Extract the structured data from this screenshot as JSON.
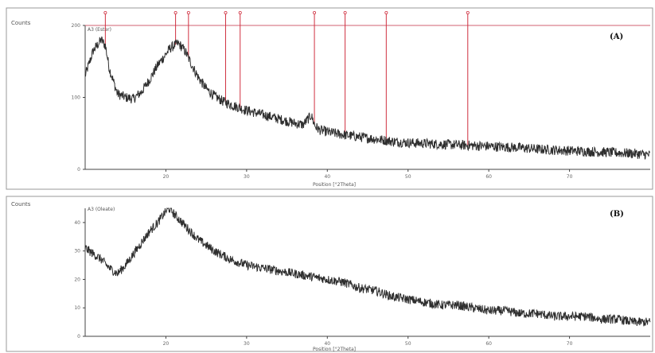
{
  "chart_data": [
    {
      "type": "line",
      "panel_label": "(A)",
      "ylabel": "Counts",
      "xlabel": "Position [°2Theta]",
      "sample_label": "A3 (Ester)",
      "xlim": [
        10,
        80
      ],
      "ylim": [
        0,
        200
      ],
      "xticks": [
        20,
        30,
        40,
        50,
        60,
        70
      ],
      "yticks": [
        0,
        100,
        200
      ],
      "ytick_labels": [
        "0",
        "100",
        "200"
      ],
      "xtick_labels": [
        "20",
        "30",
        "40",
        "50",
        "60",
        "70"
      ],
      "series": [
        {
          "x": [
            10,
            11,
            12,
            12.5,
            13,
            14,
            15,
            16,
            17,
            18,
            19,
            20,
            20.5,
            21,
            21.5,
            22,
            22.5,
            23,
            24,
            25,
            26,
            27,
            28,
            29,
            30,
            32,
            34,
            36,
            37,
            38,
            38.5,
            39,
            40,
            42,
            44,
            46,
            48,
            50,
            52,
            54,
            56,
            58,
            60,
            62,
            64,
            66,
            68,
            70,
            72,
            74,
            76,
            78,
            80
          ],
          "y": [
            130,
            165,
            180,
            172,
            140,
            105,
            100,
            98,
            108,
            125,
            145,
            160,
            168,
            172,
            175,
            170,
            162,
            150,
            128,
            112,
            102,
            95,
            90,
            86,
            82,
            76,
            70,
            64,
            62,
            75,
            60,
            55,
            52,
            48,
            45,
            42,
            39,
            37,
            36,
            35,
            34,
            33,
            32,
            31,
            30,
            28,
            27,
            26,
            25,
            24,
            23,
            22,
            20
          ]
        }
      ],
      "reference_peaks": [
        12.5,
        21.2,
        22.8,
        27.4,
        29.2,
        38.4,
        42.2,
        47.3,
        57.4
      ]
    },
    {
      "type": "line",
      "panel_label": "(B)",
      "ylabel": "Counts",
      "xlabel": "Position [°2Theta]",
      "sample_label": "A3 (Oleate)",
      "xlim": [
        10,
        80
      ],
      "ylim": [
        0,
        45
      ],
      "xticks": [
        20,
        30,
        40,
        50,
        60,
        70
      ],
      "yticks": [
        0,
        10,
        20,
        30,
        40
      ],
      "ytick_labels": [
        "0",
        "10",
        "20",
        "30",
        "40"
      ],
      "xtick_labels": [
        "20",
        "30",
        "40",
        "50",
        "60",
        "70"
      ],
      "series": [
        {
          "x": [
            10,
            11,
            12,
            13,
            14,
            15,
            16,
            17,
            18,
            19,
            20,
            20.5,
            21,
            22,
            23,
            24,
            25,
            26,
            28,
            30,
            32,
            34,
            36,
            38,
            40,
            42,
            44,
            46,
            48,
            50,
            52,
            54,
            56,
            58,
            60,
            62,
            64,
            66,
            68,
            70,
            72,
            74,
            76,
            78,
            80
          ],
          "y": [
            31,
            29,
            27,
            24,
            22,
            25,
            29,
            33,
            37,
            40,
            44,
            45,
            43,
            40,
            37,
            34,
            32,
            30,
            27,
            25,
            24,
            23,
            22,
            21,
            20,
            19,
            17,
            16,
            14,
            13,
            12,
            11,
            11,
            10,
            9,
            9,
            8,
            8,
            7,
            7,
            7,
            6,
            6,
            5,
            5
          ]
        }
      ]
    }
  ]
}
